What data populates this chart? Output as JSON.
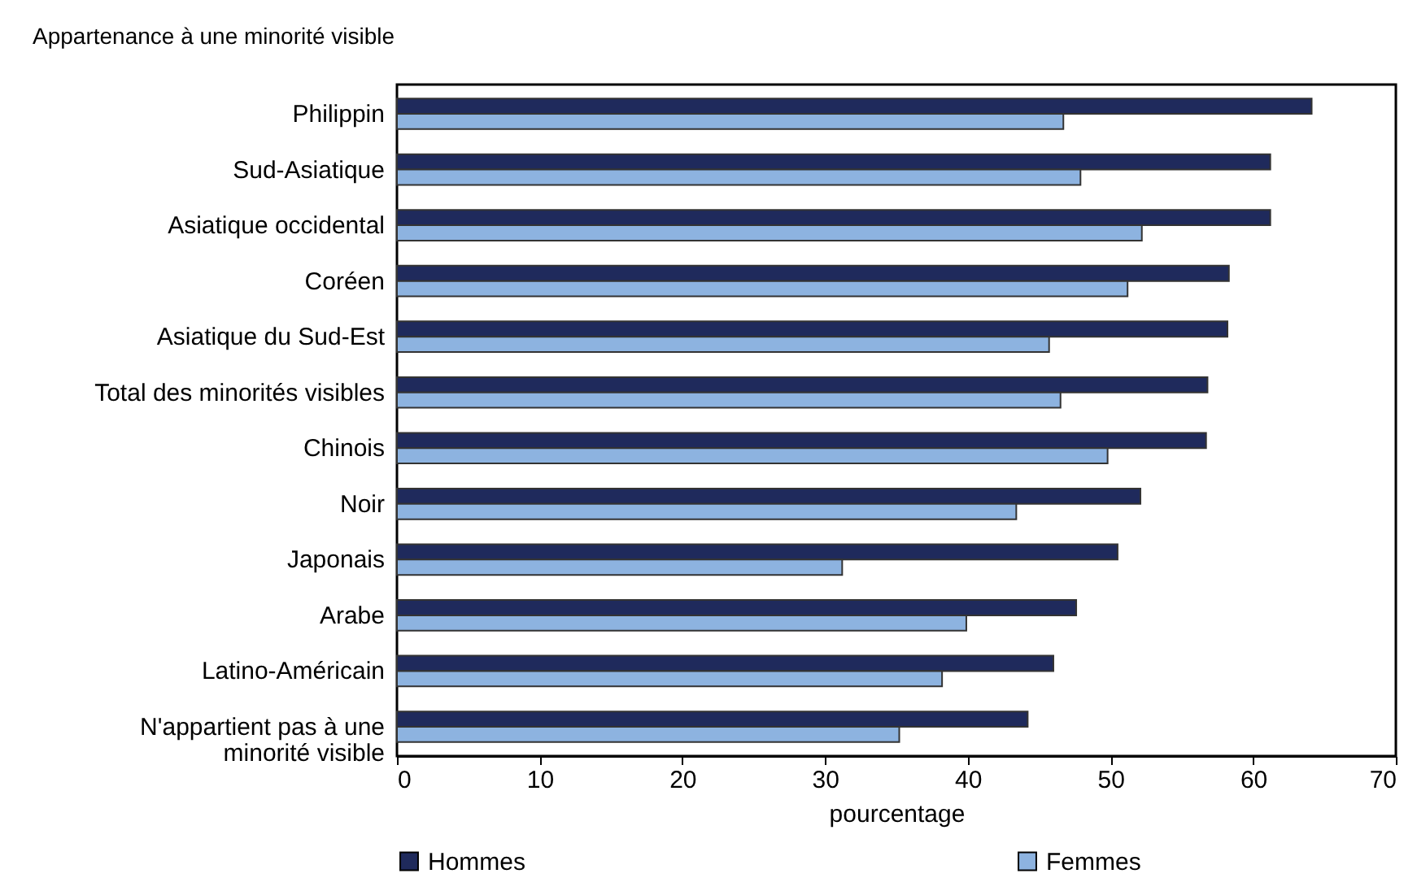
{
  "chart_data": {
    "type": "bar",
    "orientation": "horizontal",
    "title": "Appartenance à une minorité visible",
    "xlabel": "pourcentage",
    "categories": [
      "Philippin",
      "Sud-Asiatique",
      "Asiatique occidental",
      "Coréen",
      "Asiatique du Sud-Est",
      "Total des minorités visibles",
      "Chinois",
      "Noir",
      "Japonais",
      "Arabe",
      "Latino-Américain",
      "N'appartient pas à une minorité visible"
    ],
    "series": [
      {
        "name": "Hommes",
        "color": "#1f2a5c",
        "values": [
          64.1,
          61.2,
          61.2,
          58.3,
          58.2,
          56.8,
          56.7,
          52.1,
          50.5,
          47.6,
          46.0,
          44.2
        ]
      },
      {
        "name": "Femmes",
        "color": "#8db3e0",
        "values": [
          46.7,
          47.9,
          52.2,
          51.2,
          45.7,
          46.5,
          49.8,
          43.4,
          31.2,
          39.9,
          38.2,
          35.2
        ]
      }
    ],
    "xlim": [
      0,
      70
    ],
    "xticks": [
      0,
      10,
      20,
      30,
      40,
      50,
      60,
      70
    ],
    "legend": "bottom"
  }
}
